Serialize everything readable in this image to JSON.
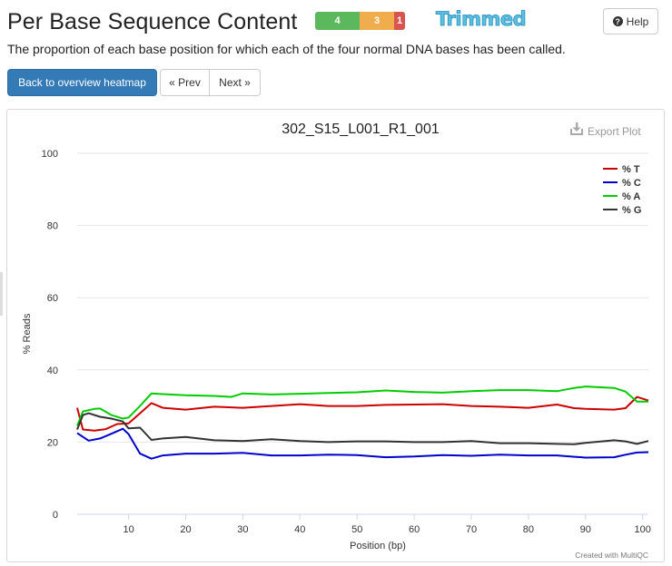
{
  "header": {
    "title": "Per Base Sequence Content",
    "status": {
      "pass": "4",
      "warn": "3",
      "fail": "1"
    },
    "badge": "Trimmed",
    "help_label": "Help"
  },
  "description": "The proportion of each base position for which each of the four normal DNA bases has been called.",
  "nav": {
    "back_label": "Back to overview heatmap",
    "prev_label": "« Prev",
    "next_label": "Next »"
  },
  "plot": {
    "export_label": "Export Plot",
    "credit": "Created with MultiQC"
  },
  "chart_data": {
    "type": "line",
    "title": "302_S15_L001_R1_001",
    "xlabel": "Position (bp)",
    "ylabel": "% Reads",
    "xlim": [
      1,
      101
    ],
    "ylim": [
      0,
      100
    ],
    "x_ticks": [
      10,
      20,
      30,
      40,
      50,
      60,
      70,
      80,
      90,
      100
    ],
    "y_ticks": [
      0,
      20,
      40,
      60,
      80,
      100
    ],
    "grid": "horizontal",
    "legend": "top-right",
    "series": [
      {
        "name": "% T",
        "color": "#cc0000",
        "points": [
          [
            1,
            29.5
          ],
          [
            2,
            23.5
          ],
          [
            4,
            23.2
          ],
          [
            6,
            23.6
          ],
          [
            8,
            25
          ],
          [
            10,
            25.2
          ],
          [
            12,
            28
          ],
          [
            14,
            30.8
          ],
          [
            16,
            29.5
          ],
          [
            20,
            29
          ],
          [
            25,
            29.8
          ],
          [
            30,
            29.5
          ],
          [
            35,
            30
          ],
          [
            40,
            30.5
          ],
          [
            45,
            30
          ],
          [
            50,
            30
          ],
          [
            55,
            30.3
          ],
          [
            60,
            30.4
          ],
          [
            65,
            30.5
          ],
          [
            70,
            30
          ],
          [
            75,
            29.8
          ],
          [
            80,
            29.5
          ],
          [
            85,
            30.4
          ],
          [
            88,
            29.4
          ],
          [
            90,
            29.2
          ],
          [
            95,
            29
          ],
          [
            97,
            29.4
          ],
          [
            99,
            32.5
          ],
          [
            101,
            31.5
          ]
        ]
      },
      {
        "name": "% C",
        "color": "#0000cc",
        "points": [
          [
            1,
            22.5
          ],
          [
            3,
            20.4
          ],
          [
            5,
            21
          ],
          [
            7,
            22.3
          ],
          [
            9,
            23.7
          ],
          [
            10,
            22.2
          ],
          [
            12,
            16.8
          ],
          [
            14,
            15.4
          ],
          [
            16,
            16.3
          ],
          [
            20,
            16.8
          ],
          [
            25,
            16.8
          ],
          [
            30,
            17
          ],
          [
            35,
            16.3
          ],
          [
            40,
            16.3
          ],
          [
            45,
            16.5
          ],
          [
            50,
            16.4
          ],
          [
            55,
            15.8
          ],
          [
            60,
            16
          ],
          [
            65,
            16.4
          ],
          [
            70,
            16.2
          ],
          [
            75,
            16.5
          ],
          [
            80,
            16.3
          ],
          [
            85,
            16.3
          ],
          [
            90,
            15.7
          ],
          [
            95,
            15.8
          ],
          [
            97,
            16.5
          ],
          [
            99,
            17.1
          ],
          [
            101,
            17.2
          ]
        ]
      },
      {
        "name": "% A",
        "color": "#00cc00",
        "points": [
          [
            1,
            24.5
          ],
          [
            2,
            28.5
          ],
          [
            4,
            29.2
          ],
          [
            5,
            29.3
          ],
          [
            7,
            27.5
          ],
          [
            9,
            26.5
          ],
          [
            10,
            26.8
          ],
          [
            12,
            30
          ],
          [
            14,
            33.5
          ],
          [
            16,
            33.3
          ],
          [
            20,
            33
          ],
          [
            25,
            32.8
          ],
          [
            28,
            32.5
          ],
          [
            30,
            33.5
          ],
          [
            35,
            33.2
          ],
          [
            40,
            33.4
          ],
          [
            45,
            33.6
          ],
          [
            50,
            33.8
          ],
          [
            55,
            34.3
          ],
          [
            60,
            33.9
          ],
          [
            65,
            33.7
          ],
          [
            70,
            34.1
          ],
          [
            75,
            34.4
          ],
          [
            80,
            34.4
          ],
          [
            85,
            34.1
          ],
          [
            88,
            35
          ],
          [
            90,
            35.4
          ],
          [
            95,
            35
          ],
          [
            97,
            34
          ],
          [
            99,
            31.2
          ],
          [
            101,
            31.2
          ]
        ]
      },
      {
        "name": "% G",
        "color": "#333333",
        "points": [
          [
            1,
            23.5
          ],
          [
            2,
            27.5
          ],
          [
            3,
            28
          ],
          [
            5,
            27
          ],
          [
            7,
            26.5
          ],
          [
            9,
            25.7
          ],
          [
            10,
            23.8
          ],
          [
            12,
            24
          ],
          [
            14,
            20.6
          ],
          [
            16,
            21
          ],
          [
            20,
            21.4
          ],
          [
            25,
            20.5
          ],
          [
            30,
            20.3
          ],
          [
            35,
            20.8
          ],
          [
            40,
            20.3
          ],
          [
            45,
            20
          ],
          [
            50,
            20.2
          ],
          [
            55,
            20.2
          ],
          [
            60,
            20
          ],
          [
            65,
            20
          ],
          [
            70,
            20.3
          ],
          [
            75,
            19.7
          ],
          [
            80,
            19.7
          ],
          [
            85,
            19.5
          ],
          [
            88,
            19.4
          ],
          [
            90,
            19.8
          ],
          [
            95,
            20.5
          ],
          [
            97,
            20.2
          ],
          [
            99,
            19.5
          ],
          [
            101,
            20.3
          ]
        ]
      }
    ]
  }
}
